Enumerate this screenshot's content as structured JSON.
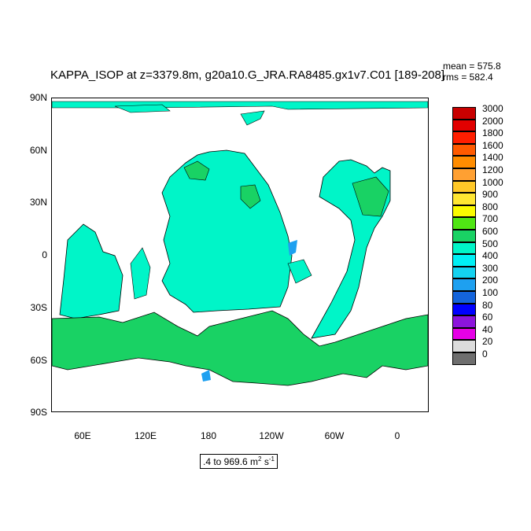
{
  "title": "KAPPA_ISOP at z=3379.8m, g20a10.G_JRA.RA8485.gx1v7.C01 [189-208]",
  "stats": {
    "mean": "mean = 575.8",
    "rms": "rms = 582.4"
  },
  "lat_labels": [
    "90N",
    "60N",
    "30N",
    "0",
    "30S",
    "60S",
    "90S"
  ],
  "lon_labels": [
    "60E",
    "120E",
    "180",
    "120W",
    "60W",
    "0"
  ],
  "colorbar": {
    "levels": [
      "3000",
      "2000",
      "1800",
      "1600",
      "1400",
      "1200",
      "1000",
      "900",
      "800",
      "700",
      "600",
      "500",
      "400",
      "300",
      "200",
      "100",
      "80",
      "60",
      "40",
      "20",
      "0"
    ],
    "colors": [
      "#c80000",
      "#e10000",
      "#ff1e00",
      "#ff5a00",
      "#ff8c00",
      "#ffa032",
      "#ffc828",
      "#ffe632",
      "#fbfb00",
      "#50e614",
      "#19d264",
      "#00f5c8",
      "#00f0f5",
      "#14d2f0",
      "#1ea0f0",
      "#1464dc",
      "#0000ff",
      "#8c14dc",
      "#e600e6",
      "#dcdcdc",
      "#6e6e6e"
    ]
  },
  "range_label": {
    "text": ".4 to 969.6 m",
    "sup1": "2",
    "unit2": " s",
    "sup2": "-1"
  },
  "map_colors": {
    "ocean_main": "#00f5c8",
    "deep_green": "#19d264",
    "cyan": "#00f0f5",
    "blue": "#1ea0f0",
    "land": "#ffffff"
  }
}
